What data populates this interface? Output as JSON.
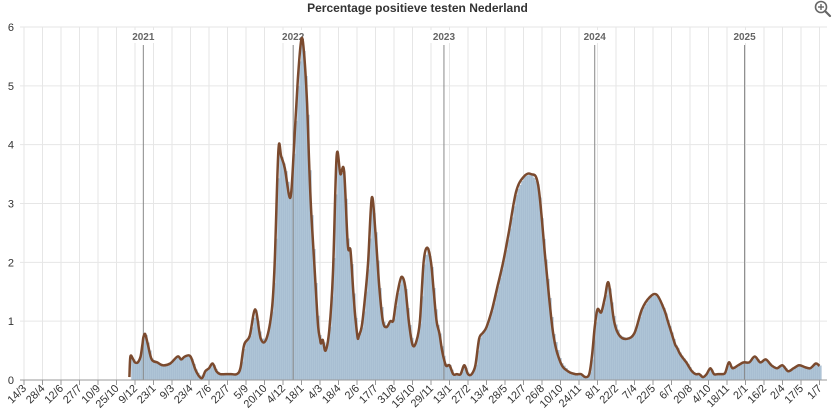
{
  "chart_data": {
    "type": "area",
    "title": "Percentage positieve testen Nederland",
    "xlabel": "",
    "ylabel": "",
    "ylim": [
      0,
      6
    ],
    "y_ticks": [
      "0",
      "1",
      "2",
      "3",
      "4",
      "5",
      "6"
    ],
    "x_tick_labels": [
      "14/3",
      "28/4",
      "12/6",
      "27/7",
      "10/9",
      "25/10",
      "9/12",
      "23/1",
      "9/3",
      "23/4",
      "7/6",
      "22/7",
      "5/9",
      "20/10",
      "4/12",
      "18/1",
      "4/3",
      "18/4",
      "2/6",
      "17/7",
      "31/8",
      "15/10",
      "29/11",
      "13/1",
      "27/2",
      "13/4",
      "28/5",
      "12/7",
      "26/8",
      "10/10",
      "24/11",
      "8/1",
      "22/2",
      "7/4",
      "22/5",
      "6/7",
      "20/8",
      "4/10",
      "18/11",
      "2/1",
      "16/2",
      "2/4",
      "17/5",
      "1/7"
    ],
    "year_markers": [
      {
        "label": "2021",
        "at_tick": 6.45
      },
      {
        "label": "2022",
        "at_tick": 14.55
      },
      {
        "label": "2023",
        "at_tick": 22.7
      },
      {
        "label": "2024",
        "at_tick": 30.85
      },
      {
        "label": "2025",
        "at_tick": 38.95
      }
    ],
    "grid": true,
    "legend": "none",
    "colors": {
      "line": "#7b4a2e",
      "bars": "#aec4d6",
      "bars_stroke": "#9fb6ca",
      "grid": "#e6e6e6",
      "year_line": "#888888"
    },
    "series": [
      {
        "x_tick_pos": [
          5.7,
          5.75,
          5.9,
          6.0,
          6.15,
          6.3,
          6.4,
          6.45,
          6.55,
          6.7,
          6.9,
          7.2,
          7.5,
          7.9,
          8.3,
          8.5,
          8.7,
          9.0,
          9.3,
          9.6,
          9.8,
          10.0,
          10.2,
          10.4,
          10.6,
          10.9,
          11.2,
          11.5,
          11.7,
          11.9,
          12.2,
          12.5,
          12.8,
          13.1,
          13.4,
          13.55,
          13.75,
          13.9,
          14.1,
          14.4,
          14.6,
          14.8,
          15.0,
          15.15,
          15.3,
          15.4,
          15.5,
          15.65,
          15.8,
          15.9,
          16.0,
          16.05,
          16.15,
          16.3,
          16.5,
          16.7,
          16.9,
          17.1,
          17.3,
          17.5,
          17.65,
          17.8,
          17.9,
          18.0,
          18.05,
          18.1,
          18.25,
          18.4,
          18.6,
          18.8,
          19.0,
          19.2,
          19.4,
          19.6,
          19.8,
          19.95,
          20.05,
          20.2,
          20.4,
          20.6,
          20.8,
          21.0,
          21.2,
          21.4,
          21.6,
          21.8,
          22.0,
          22.15,
          22.3,
          22.45,
          22.6,
          22.8,
          23.0,
          23.2,
          23.4,
          23.6,
          23.8,
          24.0,
          24.2,
          24.4,
          24.6,
          24.8,
          25.0,
          25.3,
          25.6,
          25.9,
          26.2,
          26.6,
          27.0,
          27.4,
          27.8,
          28.2,
          28.6,
          29.0,
          29.4,
          29.8,
          30.1,
          30.35,
          30.55,
          30.7,
          30.85,
          31.0,
          31.2,
          31.4,
          31.6,
          31.9,
          32.2,
          32.6,
          33.0,
          33.4,
          33.8,
          34.2,
          34.6,
          34.8,
          35.0,
          35.2,
          35.3,
          35.45,
          35.6,
          35.8,
          35.9,
          36.1,
          36.3,
          36.5,
          36.7,
          36.9,
          37.1,
          37.3,
          37.5,
          37.7,
          37.9,
          38.1,
          38.3,
          38.6,
          38.9,
          39.2,
          39.5,
          39.8,
          40.1,
          40.4,
          40.7,
          41.0,
          41.3,
          41.6,
          41.9,
          42.2,
          42.5,
          42.8,
          43.0
        ],
        "values": [
          0.05,
          0.4,
          0.35,
          0.3,
          0.3,
          0.4,
          0.6,
          0.72,
          0.78,
          0.6,
          0.35,
          0.3,
          0.25,
          0.28,
          0.4,
          0.35,
          0.4,
          0.4,
          0.15,
          0.03,
          0.15,
          0.2,
          0.28,
          0.15,
          0.1,
          0.1,
          0.1,
          0.1,
          0.2,
          0.6,
          0.75,
          1.2,
          0.7,
          0.7,
          1.2,
          2.0,
          3.9,
          3.8,
          3.6,
          3.1,
          4.0,
          5.1,
          5.8,
          5.5,
          4.7,
          3.8,
          3.0,
          2.2,
          1.4,
          0.9,
          0.7,
          0.62,
          0.68,
          0.5,
          0.85,
          1.8,
          3.8,
          3.5,
          3.55,
          2.3,
          2.2,
          1.5,
          1.1,
          0.8,
          0.7,
          0.75,
          0.9,
          1.3,
          2.0,
          3.1,
          2.5,
          1.6,
          1.0,
          0.9,
          1.0,
          1.0,
          1.2,
          1.5,
          1.75,
          1.6,
          1.0,
          0.6,
          0.65,
          1.0,
          2.0,
          2.25,
          2.0,
          1.5,
          1.0,
          0.8,
          0.5,
          0.25,
          0.25,
          0.1,
          0.1,
          0.1,
          0.25,
          0.1,
          0.1,
          0.25,
          0.7,
          0.8,
          0.9,
          1.2,
          1.6,
          2.0,
          2.5,
          3.2,
          3.45,
          3.5,
          3.3,
          2.0,
          0.8,
          0.3,
          0.15,
          0.1,
          0.1,
          0.05,
          0.1,
          0.4,
          0.9,
          1.2,
          1.15,
          1.4,
          1.65,
          1.0,
          0.75,
          0.7,
          0.8,
          1.2,
          1.4,
          1.45,
          1.2,
          1.0,
          0.8,
          0.6,
          0.55,
          0.45,
          0.38,
          0.3,
          0.25,
          0.15,
          0.1,
          0.1,
          0.05,
          0.1,
          0.2,
          0.1,
          0.1,
          0.1,
          0.12,
          0.3,
          0.2,
          0.25,
          0.3,
          0.3,
          0.4,
          0.3,
          0.35,
          0.25,
          0.2,
          0.25,
          0.15,
          0.2,
          0.25,
          0.22,
          0.2,
          0.28,
          0.24,
          0.2
        ]
      }
    ]
  }
}
